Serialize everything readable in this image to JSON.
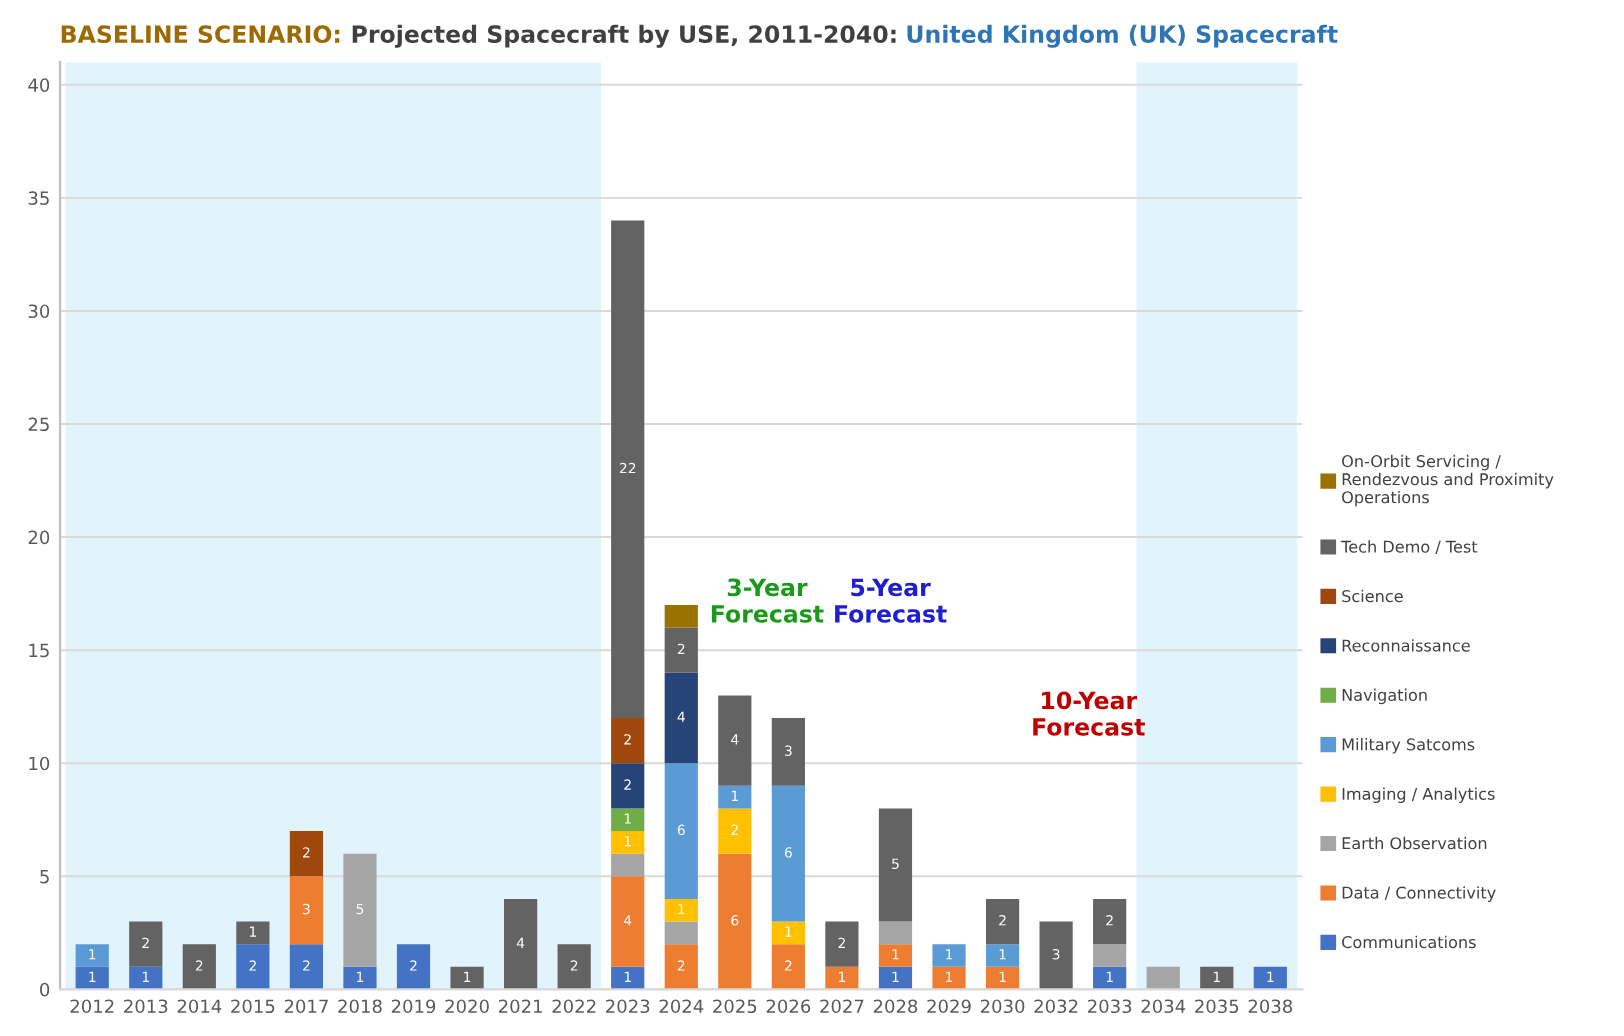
{
  "chart_data": {
    "type": "bar",
    "stacked": true,
    "title": "BASELINE SCENARIO: Projected Spacecraft by USE, 2011-2040: United Kingdom (UK) Spacecraft",
    "categories": [
      "2012",
      "2013",
      "2014",
      "2015",
      "2017",
      "2018",
      "2019",
      "2020",
      "2021",
      "2022",
      "2023",
      "2024",
      "2025",
      "2026",
      "2027",
      "2028",
      "2029",
      "2030",
      "2032",
      "2033",
      "2034",
      "2035",
      "2038"
    ],
    "series": [
      {
        "name": "Communications",
        "color": "#4472c4",
        "values": [
          1,
          1,
          0,
          2,
          2,
          1,
          2,
          0,
          0,
          0,
          1,
          0,
          0,
          0,
          0,
          1,
          0,
          0,
          0,
          1,
          0,
          0,
          1
        ],
        "value_labels": [
          "1",
          "1",
          null,
          "2",
          "2",
          "1",
          "2",
          null,
          null,
          null,
          "1",
          null,
          null,
          null,
          null,
          "1",
          null,
          null,
          null,
          "1",
          null,
          null,
          "1"
        ]
      },
      {
        "name": "Data / Connectivity",
        "color": "#ed7d31",
        "values": [
          0,
          0,
          0,
          0,
          3,
          0,
          0,
          0,
          0,
          0,
          4,
          2,
          6,
          2,
          1,
          1,
          1,
          1,
          0,
          0,
          0,
          0,
          0
        ],
        "value_labels": [
          null,
          null,
          null,
          null,
          "3",
          null,
          null,
          null,
          null,
          null,
          "4",
          "2",
          "6",
          "2",
          "1",
          "1",
          "1",
          "1",
          null,
          null,
          null,
          null,
          null
        ]
      },
      {
        "name": "Earth Observation",
        "color": "#a5a5a5",
        "values": [
          0,
          0,
          0,
          0,
          0,
          5,
          0,
          0,
          0,
          0,
          1,
          1,
          0,
          0,
          0,
          1,
          0,
          0,
          0,
          1,
          1,
          0,
          0
        ],
        "value_labels": [
          null,
          null,
          null,
          null,
          null,
          "5",
          null,
          null,
          null,
          null,
          null,
          null,
          null,
          null,
          null,
          null,
          null,
          null,
          null,
          null,
          null,
          null,
          null
        ]
      },
      {
        "name": "Imaging / Analytics",
        "color": "#ffc000",
        "values": [
          0,
          0,
          0,
          0,
          0,
          0,
          0,
          0,
          0,
          0,
          1,
          1,
          2,
          1,
          0,
          0,
          0,
          0,
          0,
          0,
          0,
          0,
          0
        ],
        "value_labels": [
          null,
          null,
          null,
          null,
          null,
          null,
          null,
          null,
          null,
          null,
          "1",
          "1",
          "2",
          "1",
          null,
          null,
          null,
          null,
          null,
          null,
          null,
          null,
          null
        ]
      },
      {
        "name": "Military Satcoms",
        "color": "#5b9bd5",
        "values": [
          1,
          0,
          0,
          0,
          0,
          0,
          0,
          0,
          0,
          0,
          0,
          6,
          1,
          6,
          0,
          0,
          1,
          1,
          0,
          0,
          0,
          0,
          0
        ],
        "value_labels": [
          "1",
          null,
          null,
          null,
          null,
          null,
          null,
          null,
          null,
          null,
          null,
          "6",
          "1",
          "6",
          null,
          null,
          "1",
          "1",
          null,
          null,
          null,
          null,
          null
        ]
      },
      {
        "name": "Navigation",
        "color": "#70ad47",
        "values": [
          0,
          0,
          0,
          0,
          0,
          0,
          0,
          0,
          0,
          0,
          1,
          0,
          0,
          0,
          0,
          0,
          0,
          0,
          0,
          0,
          0,
          0,
          0
        ],
        "value_labels": [
          null,
          null,
          null,
          null,
          null,
          null,
          null,
          null,
          null,
          null,
          "1",
          null,
          null,
          null,
          null,
          null,
          null,
          null,
          null,
          null,
          null,
          null,
          null
        ]
      },
      {
        "name": "Reconnaissance",
        "color": "#264478",
        "values": [
          0,
          0,
          0,
          0,
          0,
          0,
          0,
          0,
          0,
          0,
          2,
          4,
          0,
          0,
          0,
          0,
          0,
          0,
          0,
          0,
          0,
          0,
          0
        ],
        "value_labels": [
          null,
          null,
          null,
          null,
          null,
          null,
          null,
          null,
          null,
          null,
          "2",
          "4",
          null,
          null,
          null,
          null,
          null,
          null,
          null,
          null,
          null,
          null,
          null
        ]
      },
      {
        "name": "Science",
        "color": "#9e480e",
        "values": [
          0,
          0,
          0,
          0,
          2,
          0,
          0,
          0,
          0,
          0,
          2,
          0,
          0,
          0,
          0,
          0,
          0,
          0,
          0,
          0,
          0,
          0,
          0
        ],
        "value_labels": [
          null,
          null,
          null,
          null,
          "2",
          null,
          null,
          null,
          null,
          null,
          "2",
          null,
          null,
          null,
          null,
          null,
          null,
          null,
          null,
          null,
          null,
          null,
          null
        ]
      },
      {
        "name": "Tech Demo / Test",
        "color": "#636363",
        "values": [
          0,
          2,
          2,
          1,
          0,
          0,
          0,
          1,
          4,
          2,
          22,
          2,
          4,
          3,
          2,
          5,
          0,
          2,
          3,
          2,
          0,
          1,
          0
        ],
        "value_labels": [
          null,
          "2",
          "2",
          "1",
          null,
          null,
          null,
          "1",
          "4",
          "2",
          "22",
          "2",
          "4",
          "3",
          "2",
          "5",
          null,
          "2",
          "3",
          "2",
          null,
          "1",
          null
        ]
      },
      {
        "name": "On-Orbit Servicing / Rendezvous and Proximity Operations",
        "color": "#997300",
        "values": [
          0,
          0,
          0,
          0,
          0,
          0,
          0,
          0,
          0,
          0,
          0,
          1,
          0,
          0,
          0,
          0,
          0,
          0,
          0,
          0,
          0,
          0,
          0
        ],
        "value_labels": [
          null,
          null,
          null,
          null,
          null,
          null,
          null,
          null,
          null,
          null,
          null,
          null,
          null,
          null,
          null,
          null,
          null,
          null,
          null,
          null,
          null,
          null,
          null
        ]
      }
    ],
    "ylim": [
      0,
      41
    ],
    "yticks": [
      0,
      5,
      10,
      15,
      20,
      25,
      30,
      35,
      40
    ],
    "grid": "y",
    "legend": "right",
    "bands": [
      {
        "axis": "x",
        "from": "2012",
        "to": "2022",
        "color": "#e1f3fb"
      },
      {
        "axis": "x",
        "from": "2034",
        "to": "2038",
        "color": "#e1f3fb"
      }
    ],
    "annotations": [
      "3-Year Forecast",
      "5-Year Forecast",
      "10-Year Forecast"
    ]
  }
}
